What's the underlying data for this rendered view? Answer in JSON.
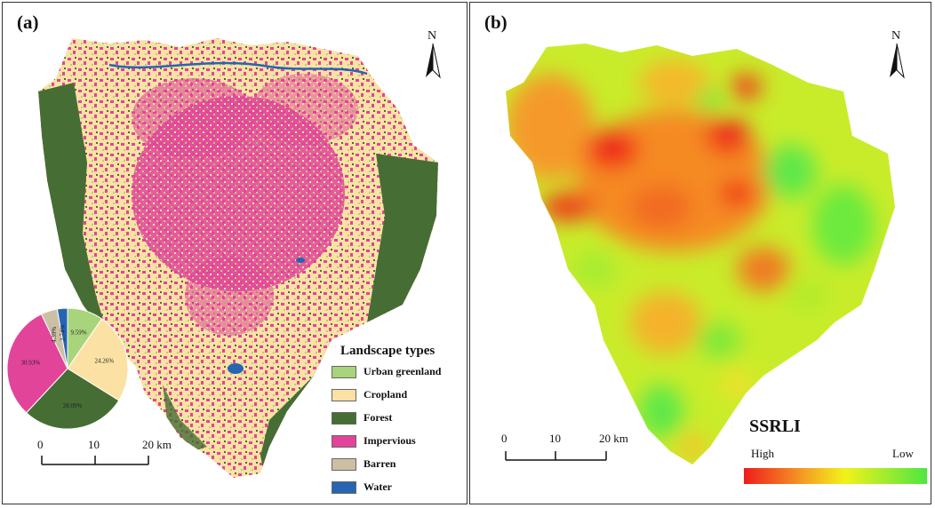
{
  "panel_a": {
    "label": "(a)",
    "north_label": "N",
    "legend": {
      "title": "Landscape types",
      "items": [
        {
          "label": "Urban greenland",
          "color": "#a8d47c"
        },
        {
          "label": "Cropland",
          "color": "#fbe2a4"
        },
        {
          "label": "Forest",
          "color": "#466e34"
        },
        {
          "label": "Impervious",
          "color": "#e2449a"
        },
        {
          "label": "Barren",
          "color": "#cdbfa4"
        },
        {
          "label": "Water",
          "color": "#2565b4"
        }
      ]
    },
    "pie": {
      "slices": [
        {
          "name": "Urban greenland",
          "value": 9.59,
          "label": "9.59%",
          "color": "#a8d47c"
        },
        {
          "name": "Cropland",
          "value": 24.26,
          "label": "24.26%",
          "color": "#fbe2a4"
        },
        {
          "name": "Forest",
          "value": 28.09,
          "label": "28.09%",
          "color": "#466e34"
        },
        {
          "name": "Impervious",
          "value": 30.93,
          "label": "30.93%",
          "color": "#e2449a"
        },
        {
          "name": "Barren",
          "value": 4.39,
          "label": "4.39%",
          "color": "#cdbfa4"
        },
        {
          "name": "Water",
          "value": 2.74,
          "label": "2.74%",
          "color": "#2565b4"
        }
      ]
    },
    "scale": {
      "ticks": [
        "0",
        "10",
        "20 km"
      ]
    }
  },
  "panel_b": {
    "label": "(b)",
    "north_label": "N",
    "index_title": "SSRLI",
    "ramp": {
      "high": "High",
      "low": "Low",
      "colors": [
        "#ef1c1c",
        "#f5a623",
        "#f2f21a",
        "#4ee640"
      ]
    },
    "scale": {
      "ticks": [
        "0",
        "10",
        "20 km"
      ]
    }
  }
}
